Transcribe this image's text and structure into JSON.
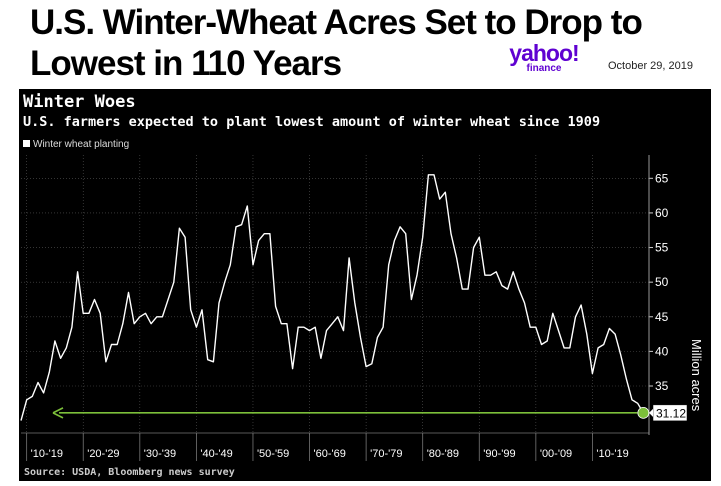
{
  "header": {
    "headline_line1": "U.S. Winter-Wheat Acres Set to Drop to",
    "headline_line2": "Lowest in 110 Years",
    "logo_main": "yahoo!",
    "logo_sub": "finance",
    "date": "October 29, 2019"
  },
  "colors": {
    "background": "#000000",
    "line": "#ffffff",
    "arrow": "#7cbf3a",
    "grid": "#555555",
    "brand": "#5f01d1"
  },
  "chart_data": {
    "type": "line",
    "title": "Winter Woes",
    "subtitle": "U.S. farmers expected to plant lowest amount of winter wheat since 1909",
    "legend": "Winter wheat planting",
    "ylabel": "Million acres",
    "xlabel": "",
    "source": "Source: USDA, Bloomberg news survey",
    "x_tick_labels": [
      "'10-'19",
      "'20-'29",
      "'30-'39",
      "'40-'49",
      "'50-'59",
      "'60-'69",
      "'70-'79",
      "'80-'89",
      "'90-'99",
      "'00-'09",
      "'10-'19"
    ],
    "y_ticks": [
      35,
      40,
      45,
      50,
      55,
      60,
      65
    ],
    "ylim": [
      28.5,
      67.5
    ],
    "xlim": [
      1909,
      2020
    ],
    "grid": true,
    "last_value_label": "31.12",
    "series": [
      {
        "name": "Winter wheat planting",
        "x": [
          1909,
          1910,
          1911,
          1912,
          1913,
          1914,
          1915,
          1916,
          1917,
          1918,
          1919,
          1920,
          1921,
          1922,
          1923,
          1924,
          1925,
          1926,
          1927,
          1928,
          1929,
          1930,
          1931,
          1932,
          1933,
          1934,
          1935,
          1936,
          1937,
          1938,
          1939,
          1940,
          1941,
          1942,
          1943,
          1944,
          1945,
          1946,
          1947,
          1948,
          1949,
          1950,
          1951,
          1952,
          1953,
          1954,
          1955,
          1956,
          1957,
          1958,
          1959,
          1960,
          1961,
          1962,
          1963,
          1964,
          1965,
          1966,
          1967,
          1968,
          1969,
          1970,
          1971,
          1972,
          1973,
          1974,
          1975,
          1976,
          1977,
          1978,
          1979,
          1980,
          1981,
          1982,
          1983,
          1984,
          1985,
          1986,
          1987,
          1988,
          1989,
          1990,
          1991,
          1992,
          1993,
          1994,
          1995,
          1996,
          1997,
          1998,
          1999,
          2000,
          2001,
          2002,
          2003,
          2004,
          2005,
          2006,
          2007,
          2008,
          2009,
          2010,
          2011,
          2012,
          2013,
          2014,
          2015,
          2016,
          2017,
          2018,
          2019,
          2020
        ],
        "values": [
          30.0,
          33.0,
          33.5,
          35.5,
          34.0,
          37.0,
          41.5,
          39.0,
          40.5,
          43.5,
          51.5,
          45.5,
          45.5,
          47.5,
          45.5,
          38.5,
          41.0,
          41.0,
          44.0,
          48.5,
          44.0,
          45.0,
          45.5,
          44.0,
          45.0,
          45.0,
          47.5,
          50.0,
          57.8,
          56.5,
          46.0,
          43.5,
          46.0,
          38.8,
          38.5,
          47.0,
          50.0,
          52.5,
          58.0,
          58.3,
          61.0,
          52.5,
          56.0,
          57.0,
          57.0,
          46.5,
          44.0,
          44.0,
          37.5,
          43.5,
          43.5,
          43.0,
          43.5,
          39.0,
          43.0,
          44.0,
          45.0,
          43.0,
          53.5,
          47.0,
          42.0,
          37.8,
          38.2,
          42.0,
          43.5,
          52.5,
          56.0,
          58.0,
          57.0,
          47.5,
          51.0,
          56.5,
          65.5,
          65.5,
          62.0,
          63.0,
          57.0,
          53.5,
          49.0,
          49.0,
          55.0,
          56.5,
          51.0,
          51.0,
          51.5,
          49.5,
          49.0,
          51.5,
          49.0,
          47.0,
          43.5,
          43.5,
          41.0,
          41.5,
          45.5,
          43.0,
          40.5,
          40.5,
          45.0,
          46.7,
          42.5,
          36.8,
          40.5,
          41.0,
          43.3,
          42.5,
          39.5,
          36.0,
          33.0,
          32.5,
          31.12,
          31.12
        ]
      }
    ]
  }
}
